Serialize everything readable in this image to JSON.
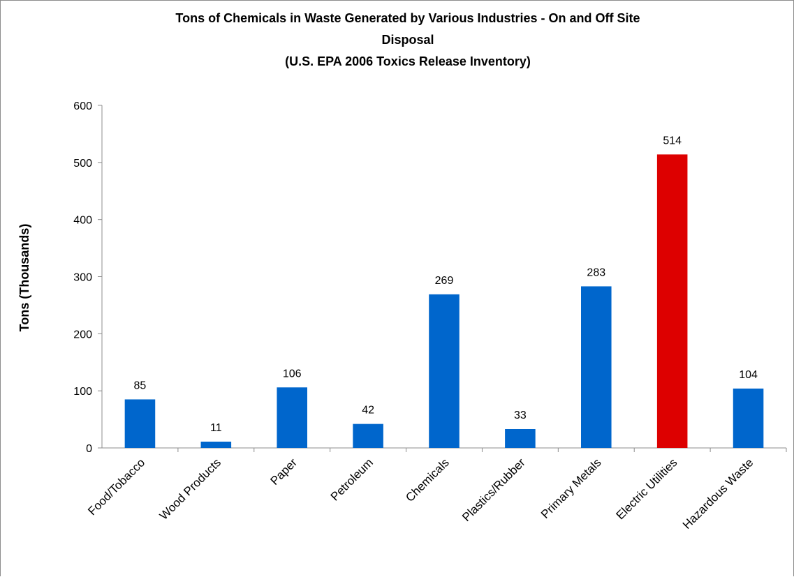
{
  "chart_data": {
    "type": "bar",
    "title_lines": [
      "Tons of Chemicals in Waste Generated by Various Industries - On and Off Site",
      "Disposal",
      "(U.S. EPA 2006 Toxics Release Inventory)"
    ],
    "ylabel": "Tons (Thousands)",
    "xlabel": "",
    "categories": [
      "Food/Tobacco",
      "Wood Products",
      "Paper",
      "Petroleum",
      "Chemicals",
      "Plastics/Rubber",
      "Primary Metals",
      "Electric Utilities",
      "Hazardous Waste"
    ],
    "values": [
      85,
      11,
      106,
      42,
      269,
      33,
      283,
      514,
      104
    ],
    "ylim": [
      0,
      600
    ],
    "yticks": [
      0,
      100,
      200,
      300,
      400,
      500,
      600
    ],
    "grid": false,
    "legend": "none",
    "colors": {
      "default": "#0066cc",
      "highlight": "#dd0000",
      "highlight_category": "Electric Utilities"
    }
  }
}
